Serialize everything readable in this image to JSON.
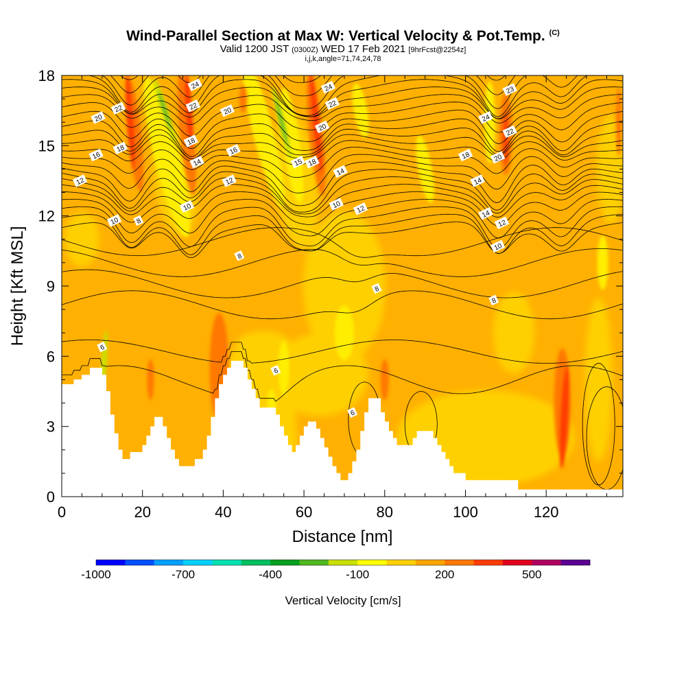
{
  "header": {
    "title_main": "Wind-Parallel Section at Max W: Vertical Velocity & Pot.Temp.",
    "title_mark": "(C)",
    "subtitle_lead": "Valid 1200 JST",
    "subtitle_utc": "(0300Z)",
    "subtitle_date": "WED 17 Feb 2021",
    "subtitle_fcst": "[9hrFcst@2254z]",
    "indices": "i,j,k,angle=71,74,24,78"
  },
  "chart_data": {
    "type": "heatmap",
    "xlabel": "Distance [nm]",
    "ylabel": "Height [Kft MSL]",
    "x_ticks": [
      "0",
      "20",
      "40",
      "60",
      "80",
      "100",
      "120"
    ],
    "y_ticks": [
      "0",
      "3",
      "6",
      "9",
      "12",
      "15",
      "18"
    ],
    "xlim": [
      0,
      139
    ],
    "ylim": [
      0,
      18
    ],
    "colorbar": {
      "label": "Vertical Velocity [cm/s]",
      "tick_labels": [
        "-1000",
        "-700",
        "-400",
        "-100",
        "200",
        "500"
      ],
      "colors": [
        "#0000ff",
        "#0050ff",
        "#00a0ff",
        "#00d0ff",
        "#00e0b0",
        "#00c060",
        "#00a020",
        "#50b820",
        "#c8e000",
        "#ffff00",
        "#ffd000",
        "#ffa500",
        "#ff7800",
        "#ff3c00",
        "#e00020",
        "#b00060",
        "#5a0090"
      ]
    },
    "background_colors": {
      "base": "#ffb000",
      "light": "#ffd000",
      "yellow": "#ffee00",
      "greenish": "#c8e000",
      "green": "#50b820",
      "orange": "#ff7800",
      "red": "#ff3c00"
    },
    "terrain_kft": [
      [
        0,
        4.8
      ],
      [
        3,
        4.8
      ],
      [
        3,
        5.0
      ],
      [
        5,
        5.0
      ],
      [
        5,
        5.2
      ],
      [
        7,
        5.2
      ],
      [
        7,
        5.5
      ],
      [
        10,
        5.5
      ],
      [
        10,
        5.2
      ],
      [
        11,
        5.2
      ],
      [
        11,
        4.5
      ],
      [
        12,
        4.5
      ],
      [
        12,
        3.5
      ],
      [
        13,
        3.5
      ],
      [
        13,
        2.7
      ],
      [
        14,
        2.7
      ],
      [
        14,
        2.0
      ],
      [
        15,
        2.0
      ],
      [
        15,
        1.6
      ],
      [
        17,
        1.6
      ],
      [
        17,
        1.9
      ],
      [
        20,
        1.9
      ],
      [
        20,
        2.2
      ],
      [
        21,
        2.2
      ],
      [
        21,
        2.6
      ],
      [
        22,
        2.6
      ],
      [
        22,
        3.0
      ],
      [
        23,
        3.0
      ],
      [
        23,
        3.4
      ],
      [
        25,
        3.4
      ],
      [
        25,
        3.0
      ],
      [
        26,
        3.0
      ],
      [
        26,
        2.5
      ],
      [
        27,
        2.5
      ],
      [
        27,
        2.0
      ],
      [
        28,
        2.0
      ],
      [
        28,
        1.6
      ],
      [
        29,
        1.6
      ],
      [
        29,
        1.3
      ],
      [
        33,
        1.3
      ],
      [
        33,
        1.6
      ],
      [
        35,
        1.6
      ],
      [
        35,
        2.0
      ],
      [
        36,
        2.0
      ],
      [
        36,
        2.6
      ],
      [
        37,
        2.6
      ],
      [
        37,
        3.4
      ],
      [
        38,
        3.4
      ],
      [
        38,
        4.2
      ],
      [
        39,
        4.2
      ],
      [
        39,
        4.8
      ],
      [
        40,
        4.8
      ],
      [
        40,
        5.2
      ],
      [
        41,
        5.2
      ],
      [
        41,
        5.5
      ],
      [
        42,
        5.5
      ],
      [
        42,
        5.8
      ],
      [
        45,
        5.8
      ],
      [
        45,
        5.5
      ],
      [
        46,
        5.5
      ],
      [
        46,
        5.0
      ],
      [
        47,
        5.0
      ],
      [
        47,
        4.6
      ],
      [
        48,
        4.6
      ],
      [
        48,
        4.2
      ],
      [
        49,
        4.2
      ],
      [
        49,
        3.8
      ],
      [
        53,
        3.8
      ],
      [
        53,
        3.5
      ],
      [
        54,
        3.5
      ],
      [
        54,
        3.0
      ],
      [
        55,
        3.0
      ],
      [
        55,
        2.6
      ],
      [
        56,
        2.6
      ],
      [
        56,
        2.2
      ],
      [
        57,
        2.2
      ],
      [
        57,
        1.9
      ],
      [
        58,
        1.9
      ],
      [
        58,
        2.2
      ],
      [
        59,
        2.2
      ],
      [
        59,
        2.6
      ],
      [
        60,
        2.6
      ],
      [
        60,
        3.0
      ],
      [
        61,
        3.0
      ],
      [
        61,
        3.2
      ],
      [
        63,
        3.2
      ],
      [
        63,
        2.9
      ],
      [
        64,
        2.9
      ],
      [
        64,
        2.5
      ],
      [
        65,
        2.5
      ],
      [
        65,
        2.1
      ],
      [
        66,
        2.1
      ],
      [
        66,
        1.7
      ],
      [
        67,
        1.7
      ],
      [
        67,
        1.3
      ],
      [
        68,
        1.3
      ],
      [
        68,
        1.0
      ],
      [
        69,
        1.0
      ],
      [
        69,
        0.7
      ],
      [
        71,
        0.7
      ],
      [
        71,
        1.0
      ],
      [
        72,
        1.0
      ],
      [
        72,
        1.5
      ],
      [
        73,
        1.5
      ],
      [
        73,
        2.0
      ],
      [
        74,
        2.0
      ],
      [
        74,
        2.8
      ],
      [
        75,
        2.8
      ],
      [
        75,
        3.6
      ],
      [
        76,
        3.6
      ],
      [
        76,
        4.2
      ],
      [
        79,
        4.2
      ],
      [
        79,
        3.6
      ],
      [
        80,
        3.6
      ],
      [
        80,
        3.2
      ],
      [
        81,
        3.2
      ],
      [
        81,
        2.8
      ],
      [
        82,
        2.8
      ],
      [
        82,
        2.5
      ],
      [
        83,
        2.5
      ],
      [
        83,
        2.2
      ],
      [
        87,
        2.2
      ],
      [
        87,
        2.5
      ],
      [
        88,
        2.5
      ],
      [
        88,
        2.8
      ],
      [
        92,
        2.8
      ],
      [
        92,
        2.5
      ],
      [
        93,
        2.5
      ],
      [
        93,
        2.2
      ],
      [
        94,
        2.2
      ],
      [
        94,
        1.9
      ],
      [
        95,
        1.9
      ],
      [
        95,
        1.6
      ],
      [
        96,
        1.6
      ],
      [
        96,
        1.3
      ],
      [
        97,
        1.3
      ],
      [
        97,
        1.0
      ],
      [
        100,
        1.0
      ],
      [
        100,
        0.7
      ],
      [
        113,
        0.7
      ],
      [
        113,
        0.3
      ],
      [
        139,
        0.3
      ]
    ]
  }
}
